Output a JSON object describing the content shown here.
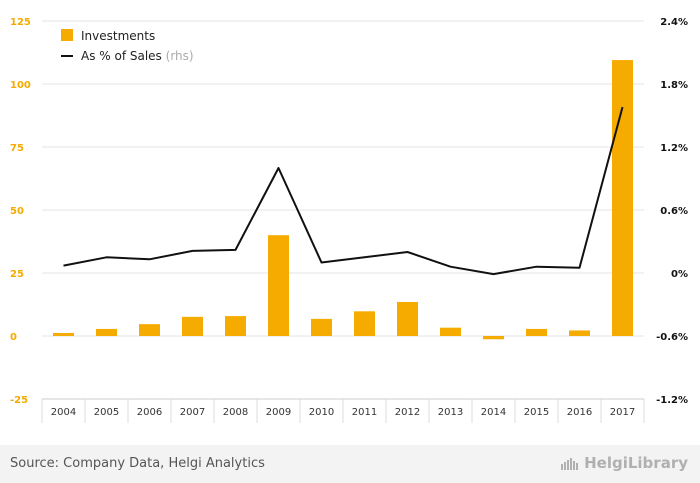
{
  "chart_data": {
    "type": "bar",
    "categories": [
      "2004",
      "2005",
      "2006",
      "2007",
      "2008",
      "2009",
      "2010",
      "2011",
      "2012",
      "2013",
      "2014",
      "2015",
      "2016",
      "2017"
    ],
    "series": [
      {
        "name": "Investments",
        "type": "bar",
        "axis": "left",
        "color": "#f5ab00",
        "values": [
          1.2,
          2.8,
          4.7,
          7.6,
          7.9,
          40.0,
          6.8,
          9.8,
          13.5,
          3.3,
          -1.3,
          2.8,
          2.2,
          109.5
        ]
      },
      {
        "name": "As % of Sales",
        "name_suffix": "(rhs)",
        "type": "line",
        "axis": "right",
        "color": "#111111",
        "values": [
          0.07,
          0.15,
          0.13,
          0.21,
          0.22,
          1.0,
          0.1,
          0.15,
          0.2,
          0.06,
          -0.01,
          0.06,
          0.05,
          1.58
        ]
      }
    ],
    "y_left": {
      "ylim": [
        -25,
        125
      ],
      "ticks": [
        "125",
        "100",
        "75",
        "50",
        "25",
        "0",
        "-25"
      ],
      "tick_values": [
        125,
        100,
        75,
        50,
        25,
        0,
        -25
      ],
      "color": "#f5ab00"
    },
    "y_right": {
      "ylim": [
        -1.2,
        2.4
      ],
      "ticks": [
        "2.4%",
        "1.8%",
        "1.2%",
        "0.6%",
        "0%",
        "-0.6%",
        "-1.2%"
      ],
      "tick_values": [
        2.4,
        1.8,
        1.2,
        0.6,
        0,
        -0.6,
        -1.2
      ],
      "color": "#111111"
    },
    "grid": true,
    "legend_position": "top-left",
    "title": "",
    "xlabel": "",
    "ylabel": ""
  },
  "footer": {
    "source": "Source: Company Data, Helgi Analytics",
    "brand": "HelgiLibrary"
  }
}
